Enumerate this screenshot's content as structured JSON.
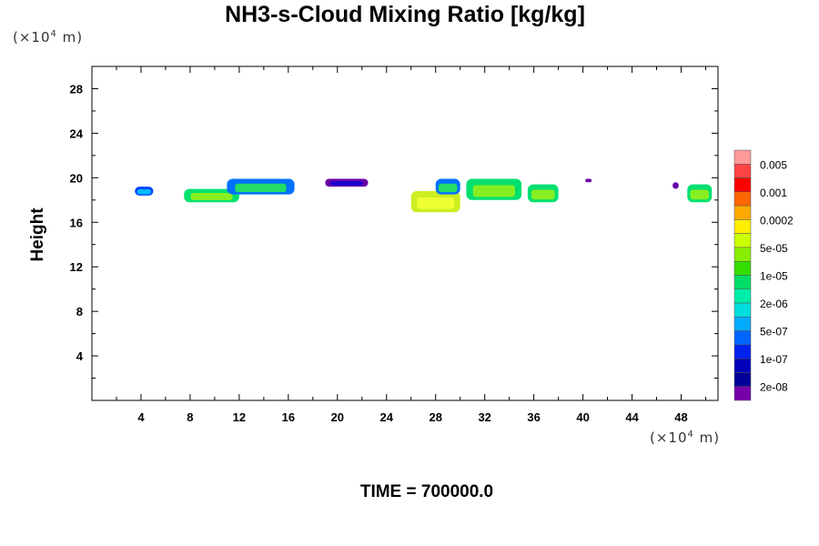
{
  "chart_data": {
    "type": "heatmap",
    "title": "NH3-s-Cloud Mixing Ratio [kg/kg]",
    "ylabel": "Height",
    "xlabel": "",
    "x_unit": "m",
    "y_unit": "m",
    "unit_base": "(×10",
    "unit_exp": "4",
    "xlim": [
      0,
      51
    ],
    "ylim": [
      0,
      30
    ],
    "x_ticks": [
      4,
      8,
      12,
      16,
      20,
      24,
      28,
      32,
      36,
      40,
      44,
      48
    ],
    "y_ticks": [
      4,
      8,
      12,
      16,
      20,
      24,
      28
    ],
    "colorbar": {
      "labels": [
        "0.005",
        "0.001",
        "0.0002",
        "5e-05",
        "1e-05",
        "2e-06",
        "5e-07",
        "1e-07",
        "2e-08"
      ],
      "colors": [
        "#ff9999",
        "#ff4444",
        "#ff0000",
        "#ff6600",
        "#ffaa00",
        "#ffee00",
        "#ccff00",
        "#88ee00",
        "#33dd00",
        "#00dd66",
        "#00eeaa",
        "#00dddd",
        "#00aaff",
        "#0066ff",
        "#0022ee",
        "#0000bb",
        "#000099",
        "#7700aa"
      ]
    },
    "cloud_patches": [
      {
        "x": [
          3.5,
          5.0
        ],
        "y": [
          18.4,
          19.2
        ],
        "level": "1e-07"
      },
      {
        "x": [
          7.5,
          12.0
        ],
        "y": [
          17.8,
          19.0
        ],
        "level": "2e-06"
      },
      {
        "x": [
          11.0,
          16.5
        ],
        "y": [
          18.5,
          19.9
        ],
        "level": "5e-07"
      },
      {
        "x": [
          19.0,
          22.5
        ],
        "y": [
          19.2,
          19.9
        ],
        "level": "2e-08"
      },
      {
        "x": [
          26.0,
          30.0
        ],
        "y": [
          16.9,
          18.8
        ],
        "level": "5e-05"
      },
      {
        "x": [
          28.0,
          30.0
        ],
        "y": [
          18.5,
          19.9
        ],
        "level": "5e-07"
      },
      {
        "x": [
          30.5,
          35.0
        ],
        "y": [
          18.0,
          19.9
        ],
        "level": "2e-06"
      },
      {
        "x": [
          35.5,
          38.0
        ],
        "y": [
          17.8,
          19.4
        ],
        "level": "2e-06"
      },
      {
        "x": [
          40.2,
          40.7
        ],
        "y": [
          19.6,
          19.9
        ],
        "level": "2e-08"
      },
      {
        "x": [
          47.3,
          47.8
        ],
        "y": [
          19.0,
          19.6
        ],
        "level": "2e-08"
      },
      {
        "x": [
          48.5,
          50.5
        ],
        "y": [
          17.8,
          19.4
        ],
        "level": "2e-06"
      }
    ]
  },
  "footer": {
    "time_label": "TIME = 700000.0"
  }
}
